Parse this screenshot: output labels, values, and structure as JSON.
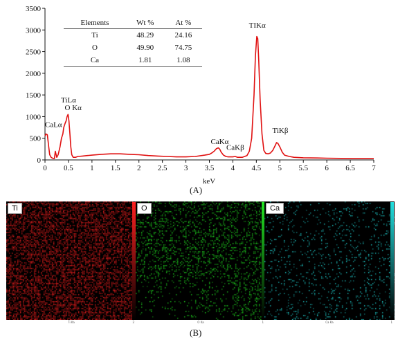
{
  "chart_data": {
    "type": "line",
    "xlabel": "keV",
    "ylabel": "",
    "xlim": [
      0,
      7
    ],
    "ylim": [
      0,
      3500
    ],
    "xticks": [
      "0",
      "0.5",
      "1",
      "1.5",
      "2",
      "2.5",
      "3",
      "3.5",
      "4",
      "4.5",
      "5",
      "5.5",
      "6",
      "6.5",
      "7"
    ],
    "yticks": [
      "0",
      "500",
      "1000",
      "1500",
      "2000",
      "2500",
      "3000",
      "3500"
    ],
    "series_color": "#e01010",
    "series": [
      {
        "x": [
          0,
          0.02,
          0.05,
          0.08,
          0.1,
          0.13,
          0.16,
          0.2,
          0.22,
          0.25,
          0.28,
          0.32,
          0.35,
          0.38,
          0.4,
          0.43,
          0.45,
          0.47,
          0.49,
          0.51,
          0.53,
          0.55,
          0.57,
          0.6,
          0.65,
          0.7,
          0.8,
          0.9,
          1.0,
          1.2,
          1.4,
          1.6,
          1.8,
          2.0,
          2.2,
          2.4,
          2.6,
          2.8,
          3.0,
          3.2,
          3.4,
          3.5,
          3.55,
          3.6,
          3.65,
          3.69,
          3.72,
          3.75,
          3.8,
          3.85,
          3.9,
          4.0,
          4.05,
          4.1,
          4.2,
          4.3,
          4.35,
          4.4,
          4.45,
          4.48,
          4.51,
          4.53,
          4.55,
          4.58,
          4.62,
          4.66,
          4.7,
          4.75,
          4.8,
          4.85,
          4.9,
          4.93,
          4.96,
          5.0,
          5.05,
          5.1,
          5.2,
          5.3,
          5.5,
          5.8,
          6.0,
          6.3,
          6.6,
          7.0
        ],
        "y": [
          550,
          600,
          580,
          300,
          120,
          60,
          40,
          30,
          200,
          60,
          120,
          300,
          500,
          600,
          750,
          850,
          900,
          1000,
          1050,
          900,
          600,
          300,
          120,
          60,
          60,
          80,
          90,
          100,
          110,
          130,
          140,
          140,
          130,
          120,
          100,
          90,
          80,
          70,
          70,
          80,
          110,
          130,
          160,
          200,
          260,
          280,
          250,
          180,
          110,
          80,
          70,
          70,
          80,
          60,
          60,
          100,
          200,
          500,
          1500,
          2400,
          2850,
          2800,
          2300,
          1400,
          600,
          220,
          150,
          140,
          160,
          220,
          330,
          400,
          380,
          300,
          180,
          110,
          80,
          60,
          50,
          45,
          40,
          35,
          30,
          30
        ]
      }
    ],
    "peak_labels": [
      {
        "text": "CaLα",
        "x": 0.18,
        "y": 760
      },
      {
        "text": "TiLα",
        "x": 0.5,
        "y": 1330
      },
      {
        "text": "O Kα",
        "x": 0.6,
        "y": 1150
      },
      {
        "text": "CaKα",
        "x": 3.72,
        "y": 370
      },
      {
        "text": "CaKβ",
        "x": 4.05,
        "y": 230
      },
      {
        "text": "TIKα",
        "x": 4.52,
        "y": 3050
      },
      {
        "text": "TiKβ",
        "x": 5.01,
        "y": 620
      }
    ]
  },
  "table": {
    "headers": [
      "Elements",
      "Wt %",
      "At %"
    ],
    "rows": [
      [
        "Ti",
        "48.29",
        "24.16"
      ],
      [
        "O",
        "49.90",
        "74.75"
      ],
      [
        "Ca",
        "1.81",
        "1.08"
      ]
    ]
  },
  "caption_a": "(A)",
  "caption_b": "(B)",
  "maps": [
    {
      "label": "Ti",
      "color": "#ff2020",
      "footer": "Ti Ka",
      "scale_max": "2"
    },
    {
      "label": "O",
      "color": "#22e622",
      "footer": "O Ka",
      "scale_max": "1"
    },
    {
      "label": "Ca",
      "color": "#22dddd",
      "footer": "Ca Ka",
      "scale_max": "1"
    }
  ]
}
